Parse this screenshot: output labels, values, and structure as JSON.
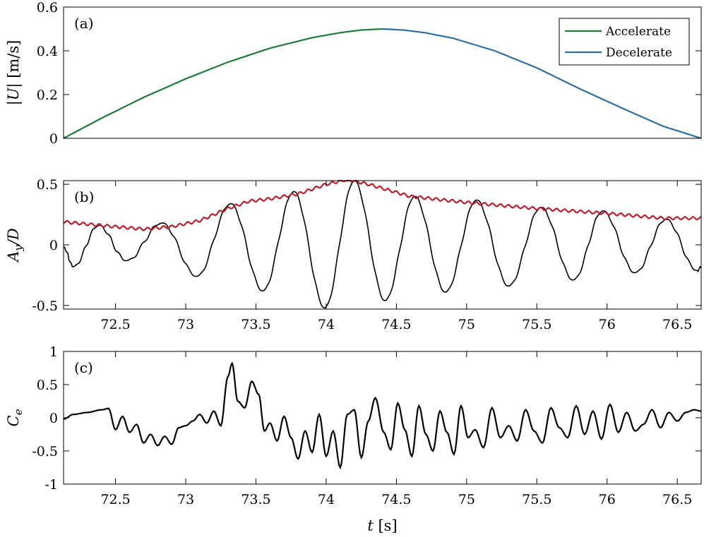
{
  "figure": {
    "xlabel_italic": "t",
    "xlabel_units": "[s]"
  },
  "chart_data": [
    {
      "type": "line",
      "panel_tag": "(a)",
      "ylabel": "|U| [m/s]",
      "ylabel_italic_part": "U",
      "xlim": [
        72.13,
        76.67
      ],
      "ylim": [
        0,
        0.6
      ],
      "yticks": [
        0,
        0.2,
        0.4,
        0.6
      ],
      "ytick_labels": [
        "0",
        "0.2",
        "0.4",
        "0.6"
      ],
      "xticks": [],
      "legend": {
        "placement": "top-right",
        "entries": [
          "Accelerate",
          "Decelerate"
        ]
      },
      "series": [
        {
          "name": "Accelerate",
          "color": "#1f7a3a",
          "x": [
            72.13,
            72.4,
            72.7,
            73.0,
            73.3,
            73.6,
            73.9,
            74.1,
            74.25,
            74.4
          ],
          "y": [
            0.0,
            0.092,
            0.187,
            0.272,
            0.348,
            0.412,
            0.46,
            0.483,
            0.495,
            0.5
          ]
        },
        {
          "name": "Decelerate",
          "color": "#2e6e9e",
          "x": [
            74.4,
            74.55,
            74.7,
            74.9,
            75.2,
            75.5,
            75.8,
            76.1,
            76.4,
            76.67
          ],
          "y": [
            0.5,
            0.495,
            0.483,
            0.458,
            0.4,
            0.322,
            0.228,
            0.14,
            0.055,
            0.0
          ]
        }
      ]
    },
    {
      "type": "line",
      "panel_tag": "(b)",
      "ylabel": "Ay/D",
      "ylabel_main": "A",
      "ylabel_sub": "y",
      "ylabel_tail": "/D",
      "xlim": [
        72.13,
        76.67
      ],
      "ylim": [
        -0.53,
        0.53
      ],
      "yticks": [
        -0.5,
        0,
        0.5
      ],
      "ytick_labels": [
        "-0.5",
        "0",
        "0.5"
      ],
      "xticks": [
        72.5,
        73,
        73.5,
        74,
        74.5,
        75,
        75.5,
        76,
        76.5
      ],
      "xtick_labels": [
        "72.5",
        "73",
        "73.5",
        "74",
        "74.5",
        "75",
        "75.5",
        "76",
        "76.5"
      ],
      "envelope_series": {
        "color": "#b8202e",
        "x": [
          72.13,
          72.4,
          72.7,
          72.9,
          73.1,
          73.3,
          73.45,
          73.6,
          73.8,
          74.0,
          74.15,
          74.3,
          74.6,
          75.0,
          75.5,
          76.0,
          76.4,
          76.67
        ],
        "y": [
          0.19,
          0.16,
          0.13,
          0.15,
          0.2,
          0.3,
          0.36,
          0.38,
          0.42,
          0.5,
          0.54,
          0.5,
          0.4,
          0.35,
          0.3,
          0.26,
          0.22,
          0.22
        ]
      },
      "oscillation_series": {
        "color": "#000000",
        "peaks": [
          [
            72.13,
            -0.02
          ],
          [
            72.2,
            -0.18
          ],
          [
            72.38,
            0.16
          ],
          [
            72.58,
            -0.13
          ],
          [
            72.83,
            0.18
          ],
          [
            73.08,
            -0.26
          ],
          [
            73.32,
            0.34
          ],
          [
            73.55,
            -0.38
          ],
          [
            73.77,
            0.44
          ],
          [
            73.99,
            -0.52
          ],
          [
            74.2,
            0.53
          ],
          [
            74.42,
            -0.46
          ],
          [
            74.63,
            0.4
          ],
          [
            74.85,
            -0.39
          ],
          [
            75.07,
            0.37
          ],
          [
            75.3,
            -0.34
          ],
          [
            75.53,
            0.31
          ],
          [
            75.76,
            -0.29
          ],
          [
            75.97,
            0.28
          ],
          [
            76.2,
            -0.23
          ],
          [
            76.42,
            0.21
          ],
          [
            76.64,
            -0.21
          ],
          [
            76.67,
            -0.19
          ]
        ]
      }
    },
    {
      "type": "line",
      "panel_tag": "(c)",
      "ylabel": "Ce",
      "ylabel_main": "C",
      "ylabel_sub": "e",
      "xlim": [
        72.13,
        76.67
      ],
      "ylim": [
        -1,
        1
      ],
      "yticks": [
        -1,
        -0.5,
        0,
        0.5,
        1
      ],
      "ytick_labels": [
        "-1",
        "-0.5",
        "0",
        "0.5",
        "1"
      ],
      "xticks": [
        72.5,
        73,
        73.5,
        74,
        74.5,
        75,
        75.5,
        76,
        76.5
      ],
      "xtick_labels": [
        "72.5",
        "73",
        "73.5",
        "74",
        "74.5",
        "75",
        "75.5",
        "76",
        "76.5"
      ],
      "series": [
        {
          "color": "#000000",
          "x": [
            72.13,
            72.2,
            72.3,
            72.4,
            72.45,
            72.5,
            72.55,
            72.6,
            72.65,
            72.7,
            72.75,
            72.8,
            72.85,
            72.9,
            72.95,
            73.0,
            73.05,
            73.1,
            73.15,
            73.2,
            73.25,
            73.3,
            73.33,
            73.37,
            73.42,
            73.47,
            73.52,
            73.56,
            73.6,
            73.65,
            73.7,
            73.75,
            73.8,
            73.85,
            73.9,
            73.95,
            74.0,
            74.05,
            74.1,
            74.15,
            74.2,
            74.25,
            74.3,
            74.35,
            74.41,
            74.46,
            74.51,
            74.56,
            74.61,
            74.66,
            74.71,
            74.76,
            74.81,
            74.86,
            74.91,
            74.96,
            75.01,
            75.06,
            75.12,
            75.18,
            75.24,
            75.3,
            75.36,
            75.42,
            75.48,
            75.54,
            75.6,
            75.66,
            75.72,
            75.78,
            75.84,
            75.9,
            75.96,
            76.02,
            76.08,
            76.14,
            76.2,
            76.26,
            76.32,
            76.38,
            76.44,
            76.5,
            76.56,
            76.62,
            76.67
          ],
          "y": [
            -0.02,
            0.05,
            0.08,
            0.12,
            0.14,
            -0.18,
            0.02,
            -0.22,
            -0.1,
            -0.38,
            -0.25,
            -0.42,
            -0.28,
            -0.4,
            -0.15,
            -0.12,
            -0.05,
            0.05,
            -0.08,
            0.1,
            -0.12,
            0.62,
            0.82,
            0.25,
            0.15,
            0.55,
            0.35,
            -0.2,
            -0.08,
            -0.35,
            0.02,
            -0.3,
            -0.62,
            -0.2,
            -0.52,
            0.05,
            -0.58,
            -0.2,
            -0.75,
            0.05,
            0.12,
            -0.6,
            -0.05,
            0.3,
            -0.22,
            -0.48,
            0.22,
            -0.18,
            -0.58,
            0.18,
            -0.25,
            -0.5,
            0.1,
            -0.22,
            -0.55,
            0.18,
            -0.3,
            -0.18,
            -0.45,
            0.15,
            -0.3,
            -0.12,
            -0.35,
            0.12,
            -0.2,
            -0.38,
            0.15,
            -0.15,
            -0.3,
            0.18,
            -0.25,
            0.1,
            -0.32,
            0.2,
            -0.22,
            0.08,
            -0.2,
            -0.1,
            0.12,
            -0.15,
            0.08,
            -0.05,
            0.08,
            0.12,
            0.1
          ]
        }
      ]
    }
  ]
}
